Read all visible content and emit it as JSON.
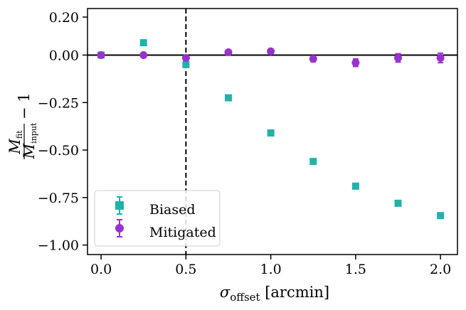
{
  "chart_data": {
    "type": "scatter",
    "title": "",
    "xlabel": {
      "symbol": "σ",
      "subscript": "offset",
      "unit": " [arcmin]"
    },
    "ylabel": {
      "num": "M",
      "num_sub": "fit",
      "den": "M",
      "den_sub": "input",
      "suffix": "− 1"
    },
    "xlim": [
      -0.08,
      2.1
    ],
    "ylim": [
      -1.05,
      0.245
    ],
    "x_ticks": [
      0.0,
      0.5,
      1.0,
      1.5,
      2.0
    ],
    "x_tick_labels": [
      "0.0",
      "0.5",
      "1.0",
      "1.5",
      "2.0"
    ],
    "y_ticks": [
      0.2,
      0.0,
      -0.25,
      -0.5,
      -0.75,
      -1.0
    ],
    "y_tick_labels": [
      "0.20",
      "0.00",
      "−0.25",
      "−0.50",
      "−0.75",
      "−1.00"
    ],
    "reference_lines": {
      "horizontal_y": 0.0,
      "vertical_x": 0.5
    },
    "legend_position": "lower-left",
    "series": [
      {
        "name": "Biased",
        "marker": "square",
        "color": "#20b2aa",
        "x": [
          0.0,
          0.25,
          0.5,
          0.75,
          1.0,
          1.25,
          1.5,
          1.75,
          2.0
        ],
        "y": [
          0.0,
          0.065,
          -0.05,
          -0.225,
          -0.41,
          -0.56,
          -0.69,
          -0.78,
          -0.845
        ],
        "yerr": [
          0.005,
          0.005,
          0.005,
          0.005,
          0.005,
          0.005,
          0.005,
          0.005,
          0.005
        ]
      },
      {
        "name": "Mitigated",
        "marker": "circle",
        "color": "#9932cc",
        "x": [
          0.0,
          0.25,
          0.5,
          0.75,
          1.0,
          1.25,
          1.5,
          1.75,
          2.0
        ],
        "y": [
          0.0,
          0.0,
          -0.015,
          0.015,
          0.02,
          -0.02,
          -0.04,
          -0.015,
          -0.015
        ],
        "yerr": [
          0.005,
          0.005,
          0.008,
          0.008,
          0.01,
          0.015,
          0.02,
          0.022,
          0.025
        ]
      }
    ]
  }
}
